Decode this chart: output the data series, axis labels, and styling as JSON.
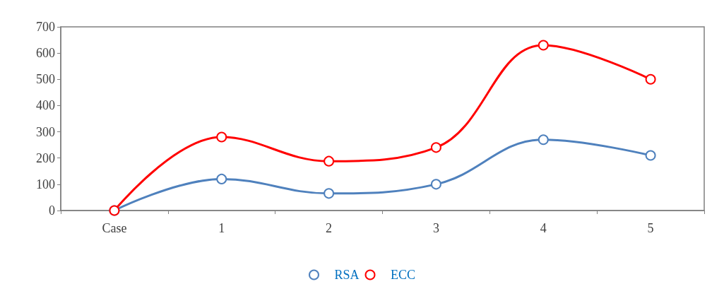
{
  "chart_data": {
    "type": "line",
    "categories": [
      "Case",
      "1",
      "2",
      "3",
      "4",
      "5"
    ],
    "series": [
      {
        "name": "RSA",
        "color": "#4f81bd",
        "values": [
          0,
          120,
          65,
          100,
          270,
          210
        ]
      },
      {
        "name": "ECC",
        "color": "#ff0000",
        "values": [
          0,
          280,
          188,
          240,
          630,
          500
        ]
      }
    ],
    "ylim": [
      0,
      700
    ],
    "yticks": [
      0,
      100,
      200,
      300,
      400,
      500,
      600,
      700
    ],
    "grid": false,
    "legend": "bottom",
    "marker": "circle",
    "line_style": "solid"
  }
}
